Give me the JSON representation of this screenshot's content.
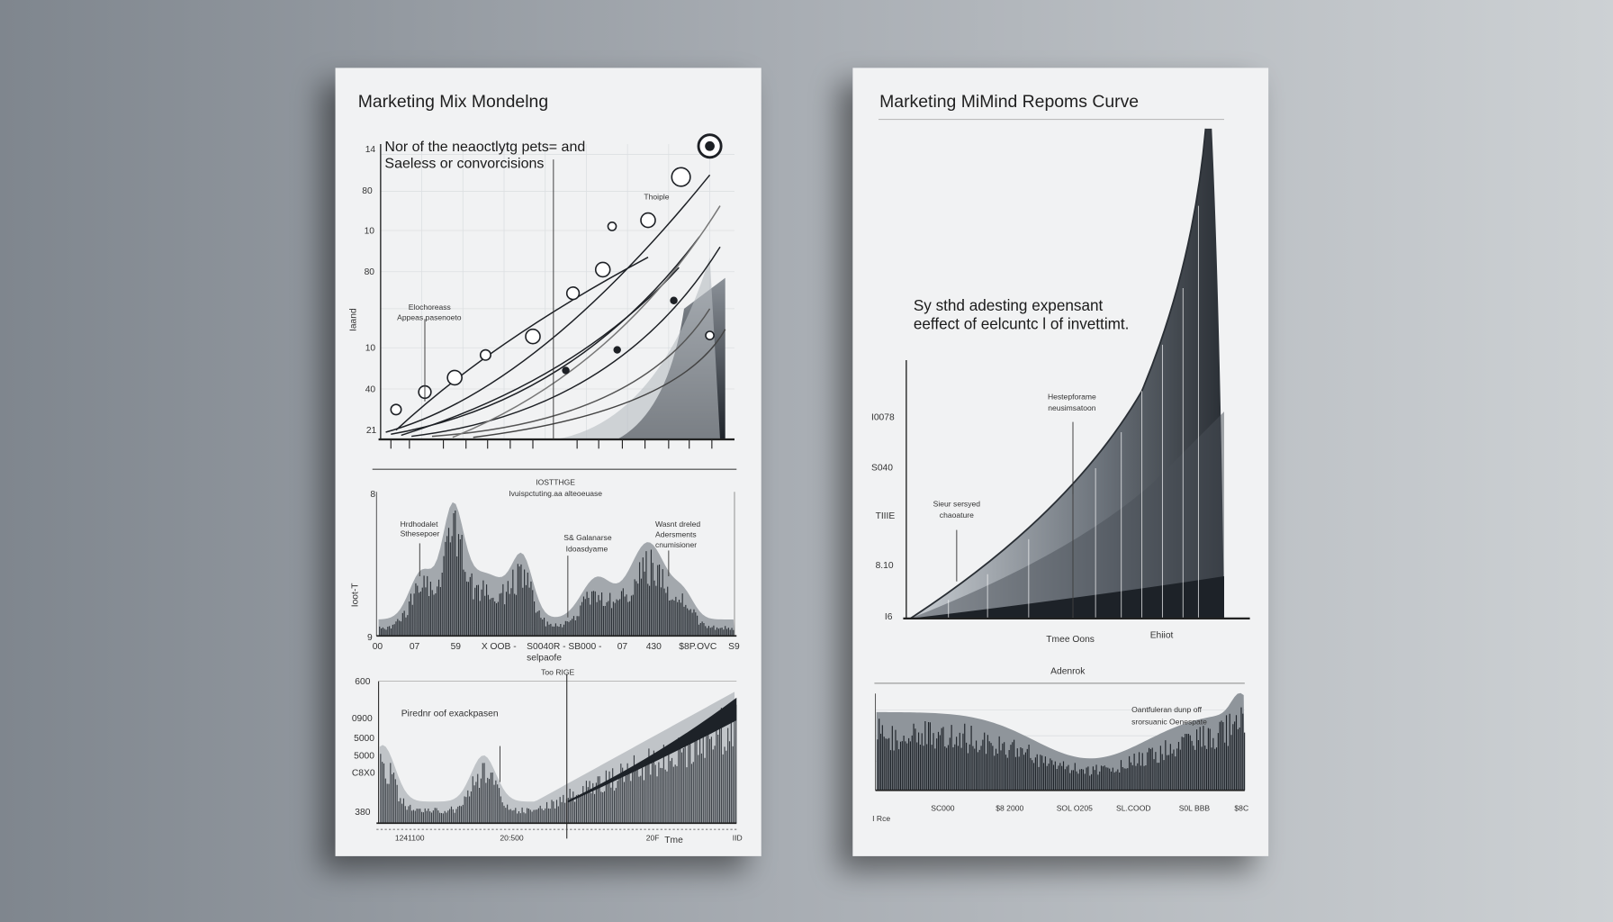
{
  "left_panel": {
    "title": "Marketing Mix Mondelng",
    "chart1": {
      "subtitle_lines": [
        "Nor of the neaoctlytg pets= and",
        "Saeless or convorcisions"
      ],
      "y_labels": [
        "14",
        "80",
        "10",
        "80",
        "10",
        "40",
        "21"
      ],
      "y_title": "Iaand",
      "annotations": [
        "Elochoreass",
        "Appeas pasenoeto",
        "Thoiple"
      ]
    },
    "chart2": {
      "title_lines": [
        "IOSTTHGE",
        "Ivuispctuting.aa alteoeuase"
      ],
      "y_labels": [
        "8",
        "Ioot-T",
        "9"
      ],
      "annotations": [
        "Hrdhodalet",
        "Sthesepoer",
        "S& Galanarse",
        "Idoasdyame",
        "Wasnt dreled",
        "Adersments",
        "cnumisioner"
      ],
      "x_labels": [
        "00",
        "07",
        "59",
        "X OOB -",
        "S0040R - SB000 -",
        "07",
        "430",
        "$8P.OVC",
        "S9"
      ],
      "x_title": "selpaofe"
    },
    "chart3": {
      "marker_label": "Too RIGE",
      "annotation": "Pirednr oof exackpasen",
      "y_labels": [
        "600",
        "0900",
        "5000",
        "5000",
        "C8X0",
        "380"
      ],
      "x_labels": [
        "1241100",
        "20:500",
        "20F",
        "Tme",
        "IID"
      ]
    }
  },
  "right_panel": {
    "title": "Marketing MiMind Repoms Curve",
    "chart1": {
      "annotation_lines": [
        "Sy sthd adesting expensant",
        "eeffect of eelcuntc l of invettimt."
      ],
      "callouts": [
        "Hestepforame",
        "neusimsatoon",
        "Sieur sersyed",
        "chaoature"
      ],
      "y_labels": [
        "I0078",
        "S040",
        "TIIIE",
        "8.10",
        "I6"
      ],
      "x_labels": [
        "Tmee Oons",
        "Ehiiot"
      ]
    },
    "chart2": {
      "title": "Adenrok",
      "annotation_lines": [
        "Oantfuleran dunp off",
        "srorsuanic Oenespate"
      ],
      "x_labels": [
        "I Rce",
        "SC000",
        "$8 2000",
        "SOL O205",
        "SL.COOD",
        "S0L BBB",
        "$8C"
      ]
    }
  }
}
